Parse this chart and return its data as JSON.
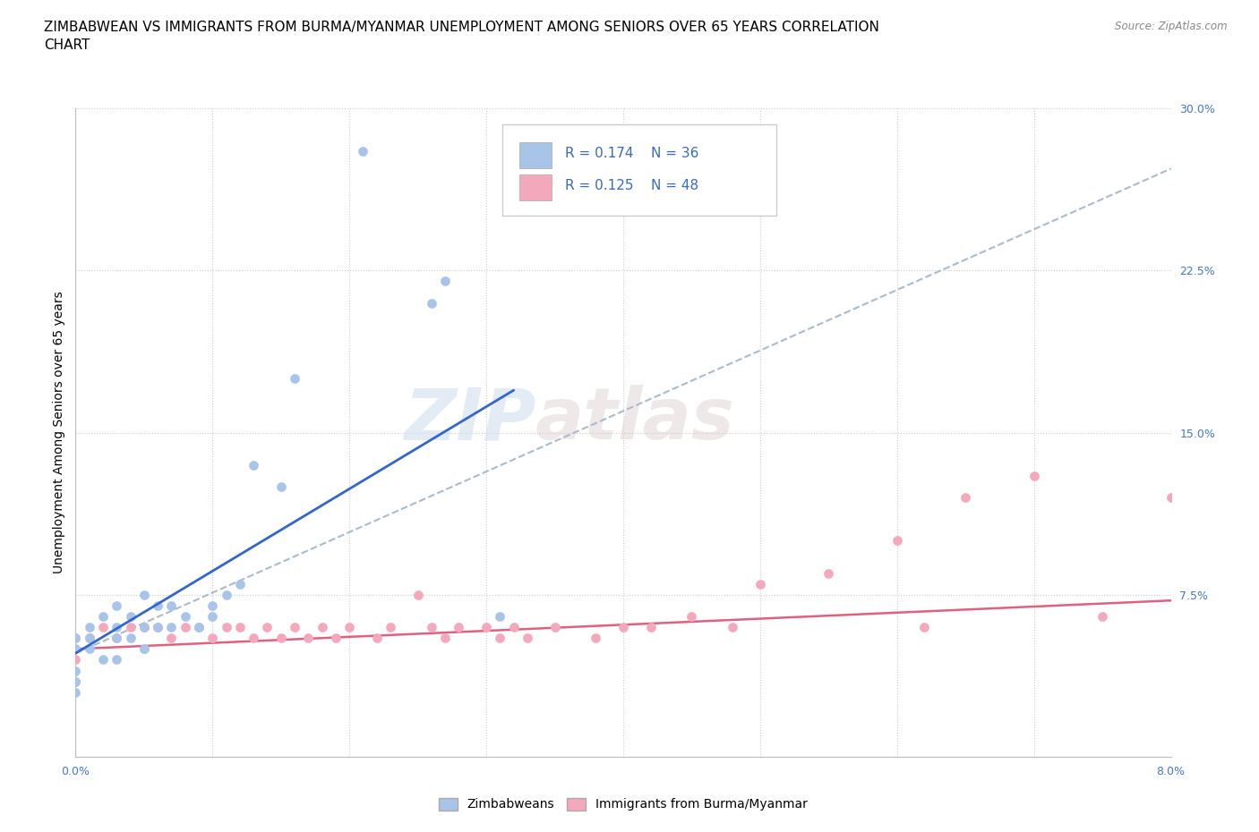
{
  "title": "ZIMBABWEAN VS IMMIGRANTS FROM BURMA/MYANMAR UNEMPLOYMENT AMONG SENIORS OVER 65 YEARS CORRELATION\nCHART",
  "source_text": "Source: ZipAtlas.com",
  "ylabel": "Unemployment Among Seniors over 65 years",
  "xlim": [
    0.0,
    0.08
  ],
  "ylim": [
    0.0,
    0.3
  ],
  "xticks": [
    0.0,
    0.01,
    0.02,
    0.03,
    0.04,
    0.05,
    0.06,
    0.07,
    0.08
  ],
  "xticklabels": [
    "0.0%",
    "",
    "",
    "",
    "",
    "",
    "",
    "",
    "8.0%"
  ],
  "yticks": [
    0.0,
    0.075,
    0.15,
    0.225,
    0.3
  ],
  "yticklabels": [
    "",
    "7.5%",
    "15.0%",
    "22.5%",
    "30.0%"
  ],
  "blue_color": "#a8c4e8",
  "pink_color": "#f4a8bc",
  "blue_line_color": "#3366cc",
  "pink_line_color": "#e06080",
  "dashed_line_color": "#aabbcc",
  "watermark_zip": "ZIP",
  "watermark_atlas": "atlas",
  "legend_R1": "R = 0.174",
  "legend_N1": "N = 36",
  "legend_R2": "R = 0.125",
  "legend_N2": "N = 48",
  "legend_label1": "Zimbabweans",
  "legend_label2": "Immigrants from Burma/Myanmar",
  "blue_scatter_x": [
    0.0,
    0.0,
    0.0,
    0.0,
    0.0,
    0.001,
    0.001,
    0.001,
    0.002,
    0.002,
    0.003,
    0.003,
    0.003,
    0.003,
    0.004,
    0.004,
    0.005,
    0.005,
    0.005,
    0.006,
    0.006,
    0.007,
    0.007,
    0.008,
    0.009,
    0.01,
    0.01,
    0.011,
    0.012,
    0.013,
    0.015,
    0.016,
    0.021,
    0.026,
    0.027,
    0.031
  ],
  "blue_scatter_y": [
    0.055,
    0.05,
    0.04,
    0.035,
    0.03,
    0.06,
    0.055,
    0.05,
    0.065,
    0.045,
    0.07,
    0.06,
    0.055,
    0.045,
    0.065,
    0.055,
    0.075,
    0.06,
    0.05,
    0.07,
    0.06,
    0.07,
    0.06,
    0.065,
    0.06,
    0.07,
    0.065,
    0.075,
    0.08,
    0.135,
    0.125,
    0.175,
    0.28,
    0.21,
    0.22,
    0.065
  ],
  "pink_scatter_x": [
    0.0,
    0.0,
    0.0,
    0.001,
    0.002,
    0.003,
    0.004,
    0.005,
    0.005,
    0.006,
    0.007,
    0.008,
    0.009,
    0.01,
    0.011,
    0.012,
    0.013,
    0.014,
    0.015,
    0.016,
    0.017,
    0.018,
    0.019,
    0.02,
    0.022,
    0.023,
    0.025,
    0.026,
    0.027,
    0.028,
    0.03,
    0.031,
    0.032,
    0.033,
    0.035,
    0.038,
    0.04,
    0.042,
    0.045,
    0.048,
    0.05,
    0.055,
    0.06,
    0.062,
    0.065,
    0.07,
    0.075,
    0.08
  ],
  "pink_scatter_y": [
    0.055,
    0.045,
    0.035,
    0.055,
    0.06,
    0.055,
    0.06,
    0.06,
    0.05,
    0.06,
    0.055,
    0.06,
    0.06,
    0.055,
    0.06,
    0.06,
    0.055,
    0.06,
    0.055,
    0.06,
    0.055,
    0.06,
    0.055,
    0.06,
    0.055,
    0.06,
    0.075,
    0.06,
    0.055,
    0.06,
    0.06,
    0.055,
    0.06,
    0.055,
    0.06,
    0.055,
    0.06,
    0.06,
    0.065,
    0.06,
    0.08,
    0.085,
    0.1,
    0.06,
    0.12,
    0.13,
    0.065,
    0.12
  ],
  "grid_color": "#cccccc",
  "grid_linestyle": ":",
  "background_color": "#ffffff",
  "title_fontsize": 11,
  "axis_label_fontsize": 10,
  "tick_fontsize": 9,
  "tick_color": "#4477cc",
  "blue_line_intercept": 0.048,
  "blue_line_slope": 3.8,
  "blue_dashed_slope": 2.8,
  "blue_dashed_intercept": 0.048,
  "pink_line_intercept": 0.05,
  "pink_line_slope": 0.28
}
